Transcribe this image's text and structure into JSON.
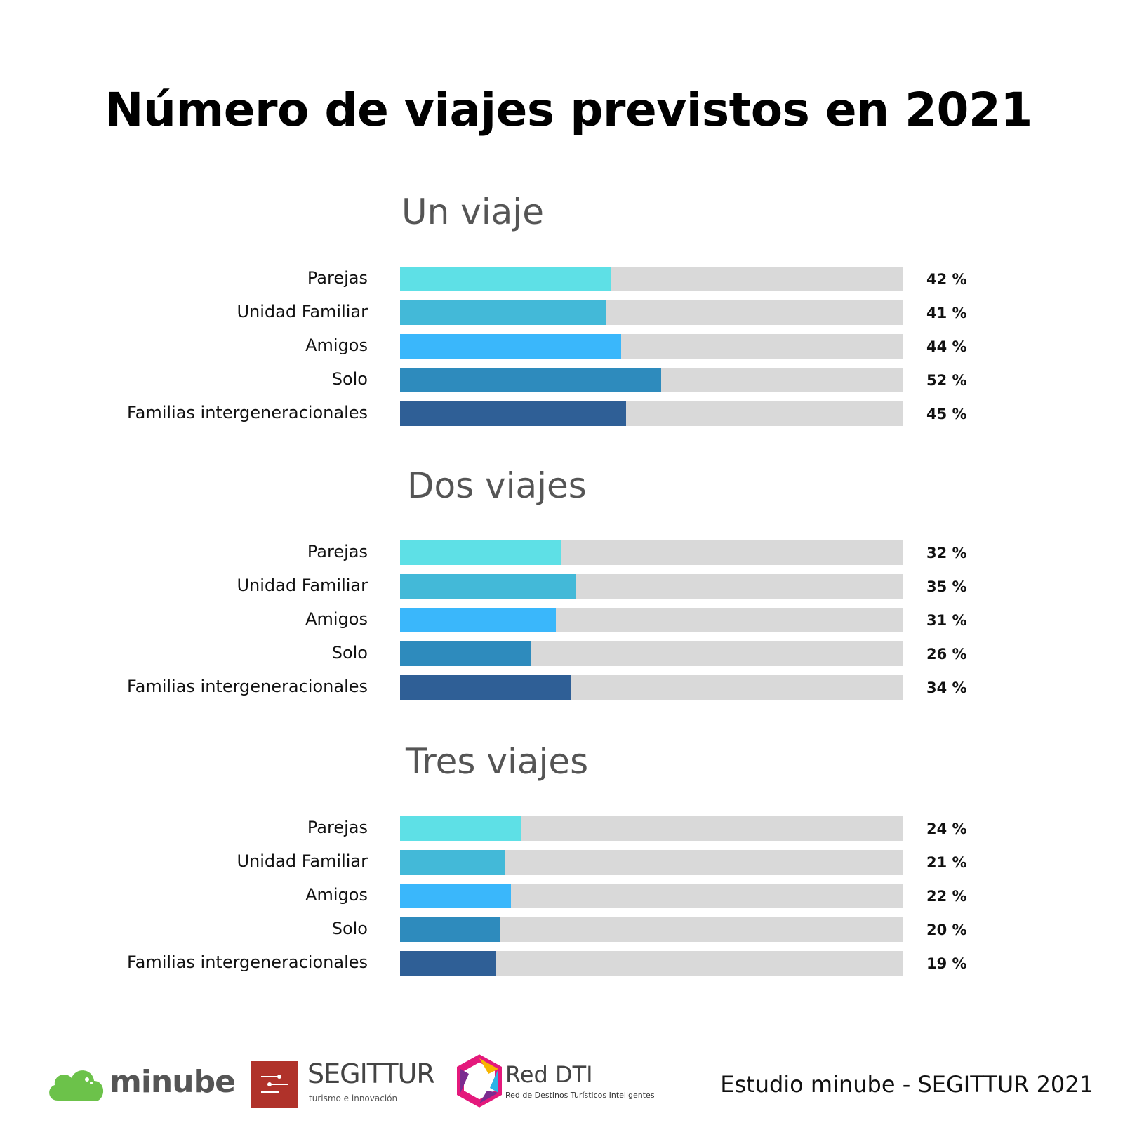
{
  "title": "Número de viajes previstos en 2021",
  "colors": [
    "#5ee0e6",
    "#43b9d8",
    "#3ab7fb",
    "#2e8bbd",
    "#2f5f96"
  ],
  "track_color": "#d9d9d9",
  "chart_data": [
    {
      "type": "bar",
      "title": "Un viaje",
      "categories": [
        "Parejas",
        "Unidad Familiar",
        "Amigos",
        "Solo",
        "Familias intergeneracionales"
      ],
      "values": [
        42,
        41,
        44,
        52,
        45
      ],
      "value_labels": [
        "42 %",
        "41 %",
        "44 %",
        "52 %",
        "45 %"
      ],
      "xlim": [
        0,
        100
      ],
      "orientation": "horizontal",
      "grid": false
    },
    {
      "type": "bar",
      "title": "Dos viajes",
      "categories": [
        "Parejas",
        "Unidad Familiar",
        "Amigos",
        "Solo",
        "Familias intergeneracionales"
      ],
      "values": [
        32,
        35,
        31,
        26,
        34
      ],
      "value_labels": [
        "32 %",
        "35 %",
        "31 %",
        "26 %",
        "34 %"
      ],
      "xlim": [
        0,
        100
      ],
      "orientation": "horizontal",
      "grid": false
    },
    {
      "type": "bar",
      "title": "Tres viajes",
      "categories": [
        "Parejas",
        "Unidad Familiar",
        "Amigos",
        "Solo",
        "Familias intergeneracionales"
      ],
      "values": [
        24,
        21,
        22,
        20,
        19
      ],
      "value_labels": [
        "24 %",
        "21 %",
        "22 %",
        "20 %",
        "19 %"
      ],
      "xlim": [
        0,
        100
      ],
      "orientation": "horizontal",
      "grid": false
    }
  ],
  "footer": {
    "source": "Estudio minube - SEGITTUR 2021",
    "logos": {
      "minube": "minube",
      "segittur": "SEGITTUR",
      "segittur_tagline": "turismo e innovación",
      "reddti": "Red DTI",
      "reddti_tagline": "Red de Destinos Turísticos Inteligentes"
    }
  }
}
